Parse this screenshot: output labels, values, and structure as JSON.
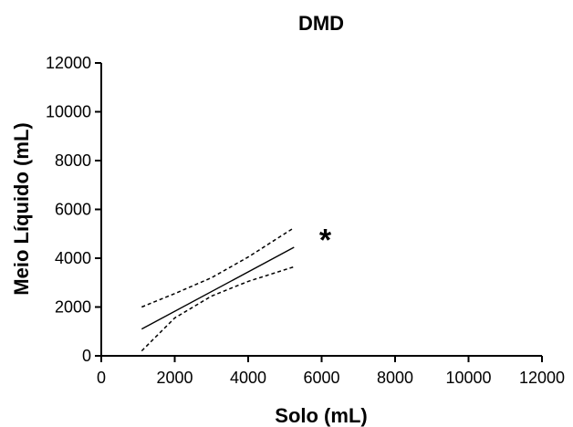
{
  "chart_data": {
    "type": "line",
    "title": "DMD",
    "xlabel": "Solo (mL)",
    "ylabel": "Meio Líquido (mL)",
    "xlim": [
      0,
      12000
    ],
    "ylim": [
      0,
      12000
    ],
    "x_ticks": [
      0,
      2000,
      4000,
      6000,
      8000,
      10000,
      12000
    ],
    "y_ticks": [
      0,
      2000,
      4000,
      6000,
      8000,
      10000,
      12000
    ],
    "grid": false,
    "annotations": [
      {
        "text": "*",
        "x": 6100,
        "y": 5000
      }
    ],
    "series": [
      {
        "role": "regression",
        "style": "solid",
        "x": [
          1100,
          5250
        ],
        "y": [
          1100,
          4450
        ]
      },
      {
        "role": "ci-upper",
        "style": "dashed",
        "x": [
          1100,
          2000,
          3000,
          4000,
          5250
        ],
        "y": [
          2000,
          2550,
          3200,
          4050,
          5250
        ]
      },
      {
        "role": "ci-lower",
        "style": "dashed",
        "x": [
          1100,
          2000,
          3000,
          4000,
          5250
        ],
        "y": [
          200,
          1550,
          2450,
          3050,
          3650
        ]
      }
    ]
  }
}
